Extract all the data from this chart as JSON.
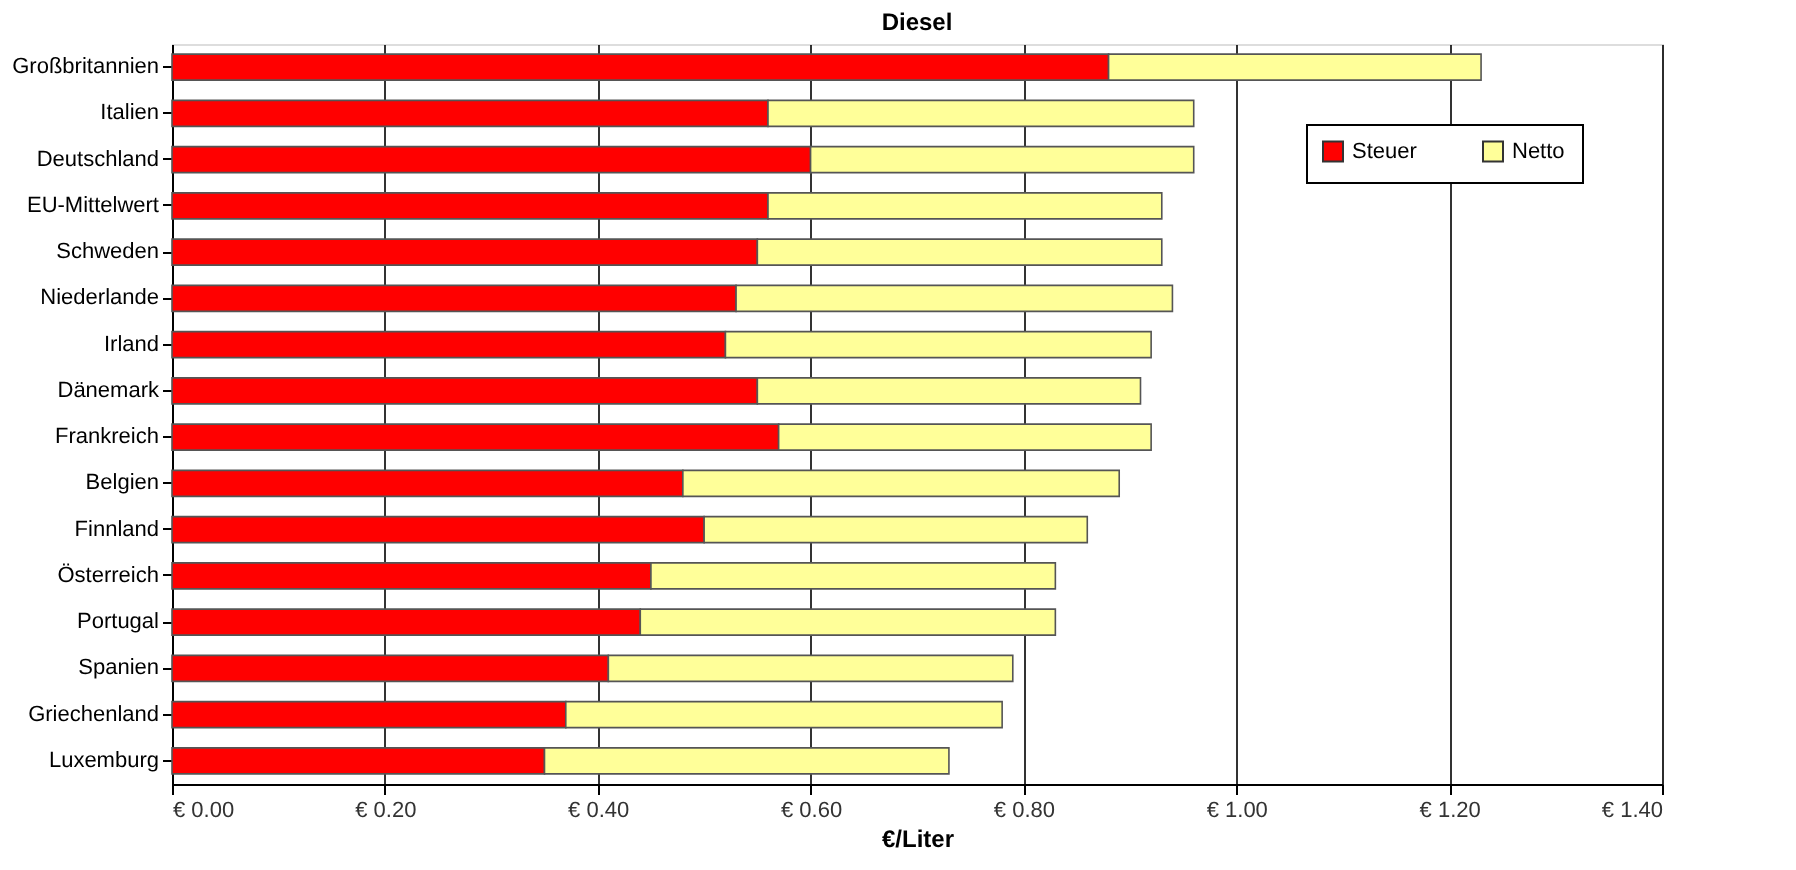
{
  "chart_data": {
    "type": "bar",
    "orientation": "horizontal",
    "stacked": true,
    "title": "Diesel",
    "xlabel": "€/Liter",
    "categories": [
      "Großbritannien",
      "Italien",
      "Deutschland",
      "EU-Mittelwert",
      "Schweden",
      "Niederlande",
      "Irland",
      "Dänemark",
      "Frankreich",
      "Belgien",
      "Finnland",
      "Österreich",
      "Portugal",
      "Spanien",
      "Griechenland",
      "Luxemburg"
    ],
    "series": [
      {
        "name": "Steuer",
        "color": "#ff0000",
        "values": [
          0.88,
          0.56,
          0.6,
          0.56,
          0.55,
          0.53,
          0.52,
          0.55,
          0.57,
          0.48,
          0.5,
          0.45,
          0.44,
          0.41,
          0.37,
          0.35
        ]
      },
      {
        "name": "Netto",
        "color": "#ffff99",
        "values": [
          0.35,
          0.4,
          0.36,
          0.37,
          0.38,
          0.41,
          0.4,
          0.36,
          0.35,
          0.41,
          0.36,
          0.38,
          0.39,
          0.38,
          0.41,
          0.38
        ]
      }
    ],
    "xlim": [
      0,
      1.4
    ],
    "xticks": [
      {
        "value": 0,
        "label": "€ 0.00"
      },
      {
        "value": 0.2,
        "label": "€ 0.20"
      },
      {
        "value": 0.4,
        "label": "€ 0.40"
      },
      {
        "value": 0.6,
        "label": "€ 0.60"
      },
      {
        "value": 0.8,
        "label": "€ 0.80"
      },
      {
        "value": 1.0,
        "label": "€ 1.00"
      },
      {
        "value": 1.2,
        "label": "€ 1.20"
      },
      {
        "value": 1.4,
        "label": "€ 1.40"
      }
    ],
    "grid": "x",
    "legend": "top right"
  }
}
